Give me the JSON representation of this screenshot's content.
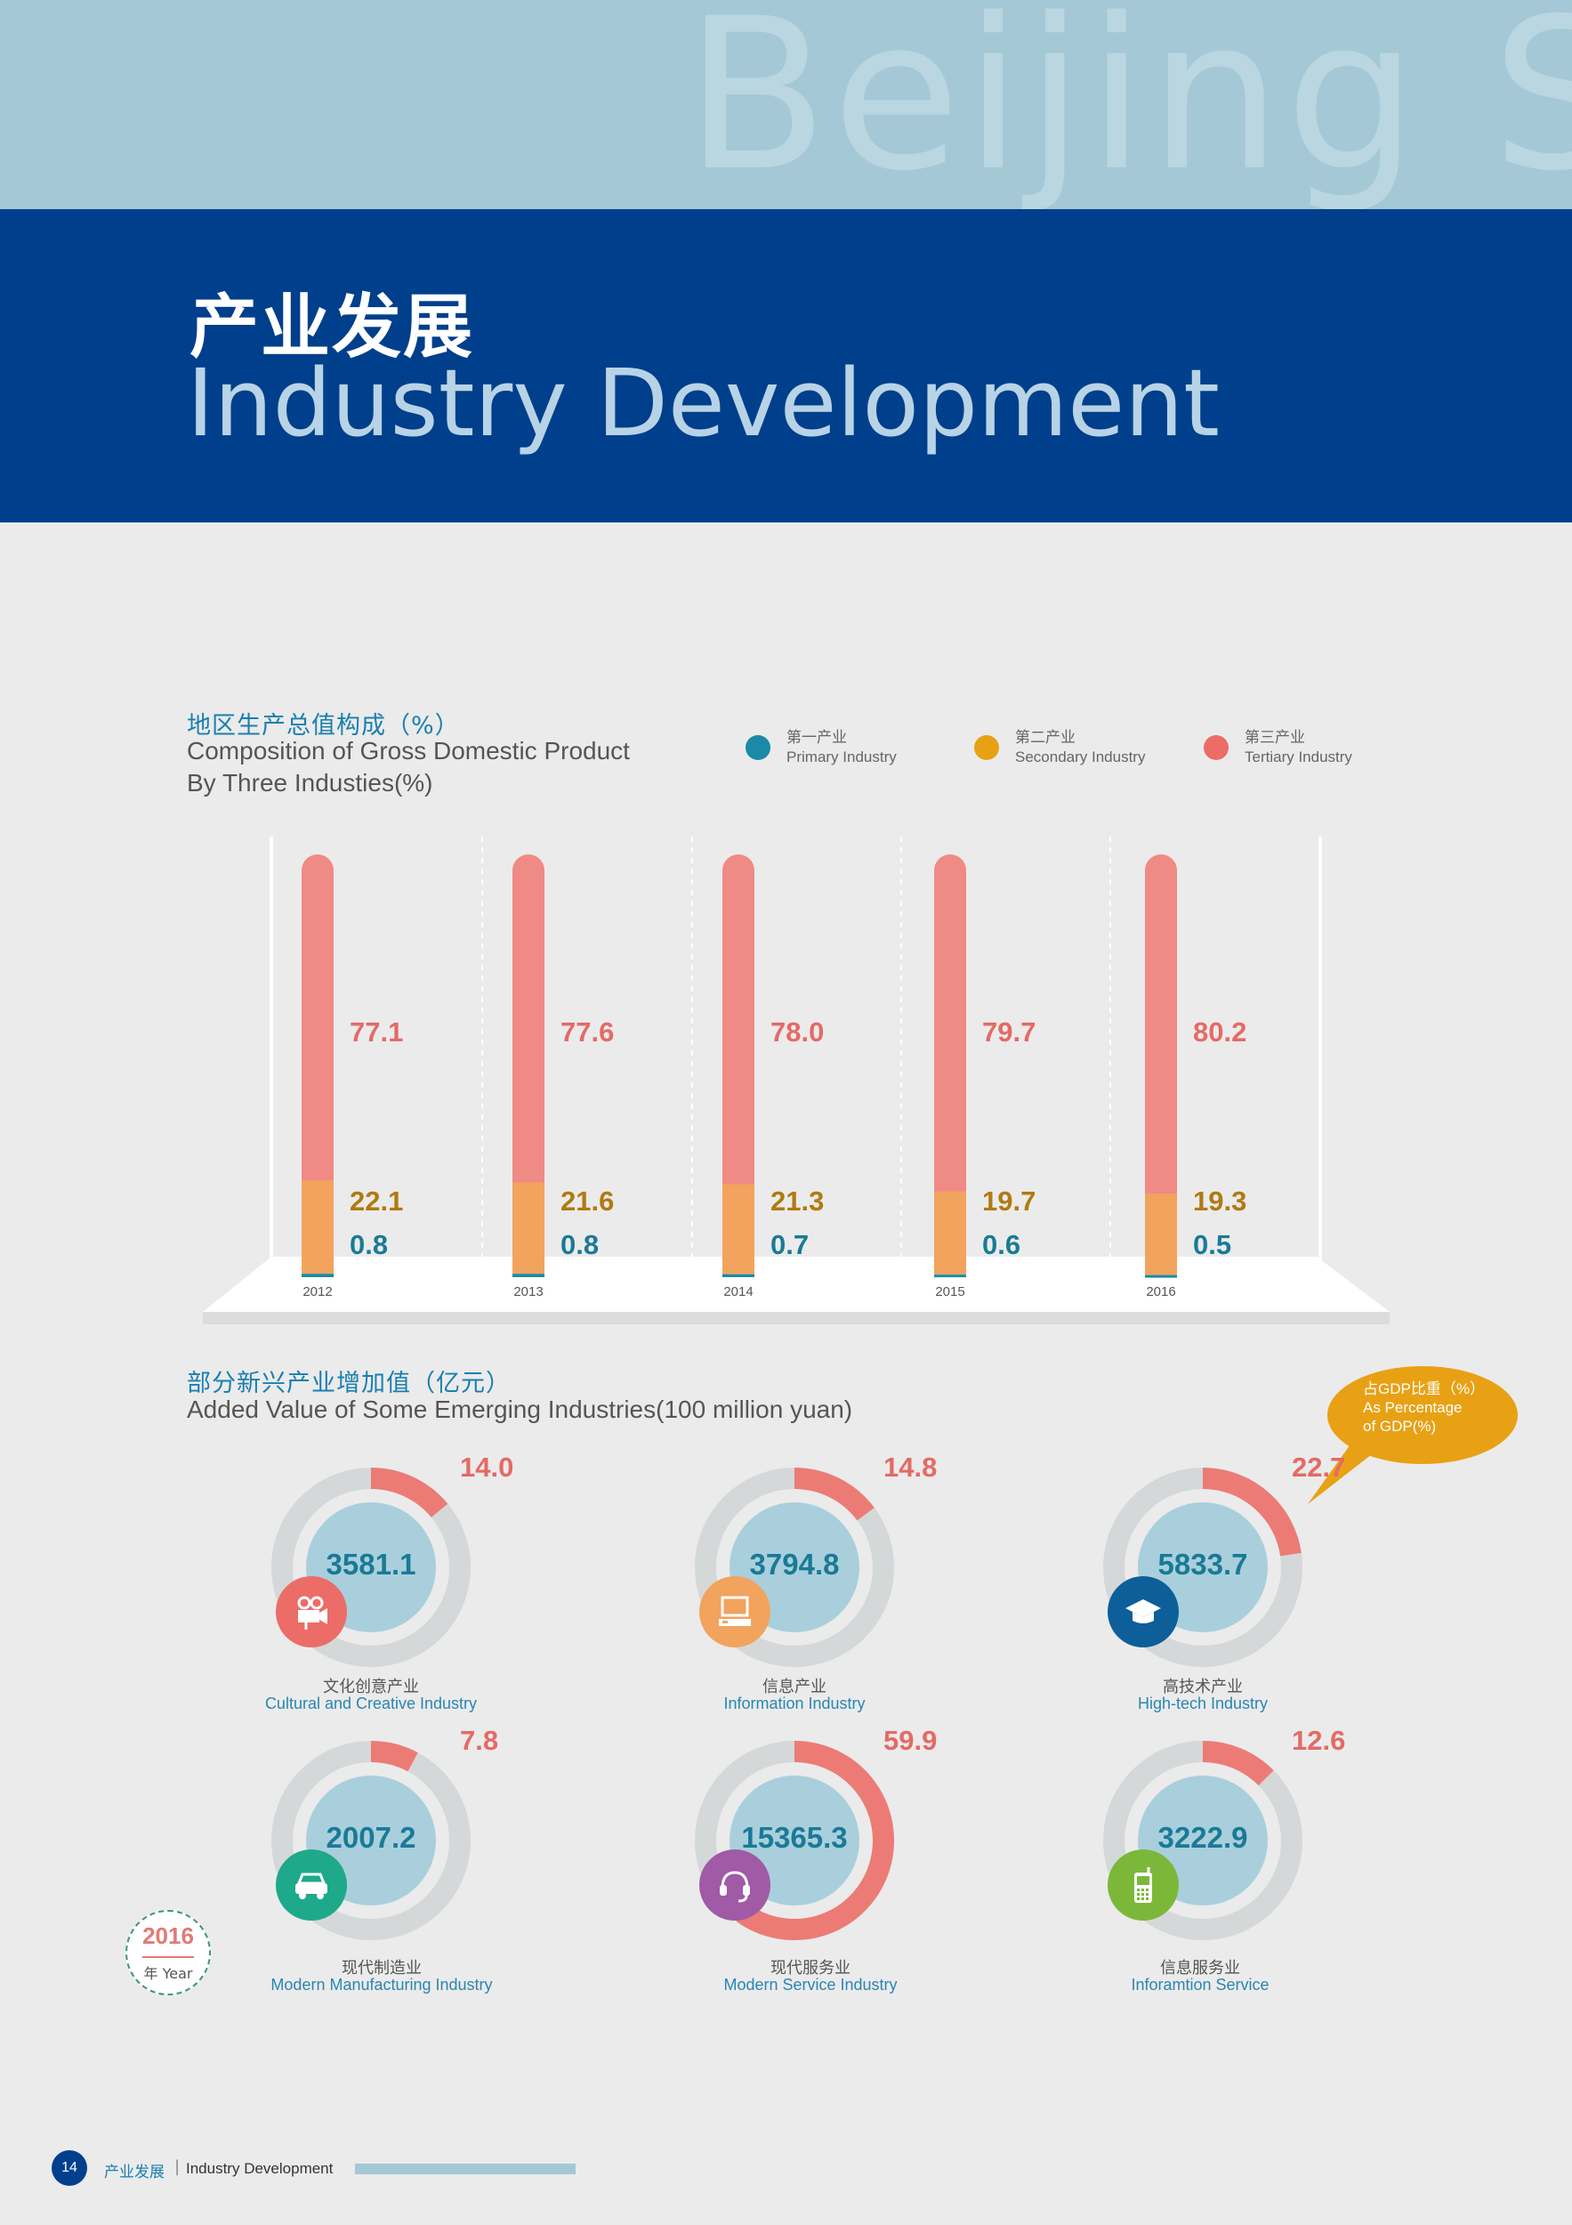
{
  "header": {
    "watermark": "Beijing Sta",
    "title_cn": "产业发展",
    "title_en": "Industry Development"
  },
  "gdp_section": {
    "title_cn": "地区生产总值构成（%）",
    "title_en_line1": "Composition of Gross Domestic Product",
    "title_en_line2": "By Three Industies(%)"
  },
  "legend": [
    {
      "cn": "第一产业",
      "en": "Primary Industry",
      "color": "#1a8aa6"
    },
    {
      "cn": "第二产业",
      "en": "Secondary Industry",
      "color": "#e8a114"
    },
    {
      "cn": "第三产业",
      "en": "Tertiary Industry",
      "color": "#ec6c68"
    }
  ],
  "chart_data": [
    {
      "type": "bar",
      "stacked": true,
      "categories": [
        "2012",
        "2013",
        "2014",
        "2015",
        "2016"
      ],
      "series": [
        {
          "name": "Primary Industry",
          "values": [
            0.8,
            0.8,
            0.7,
            0.6,
            0.5
          ],
          "color": "#1a8aa6"
        },
        {
          "name": "Secondary Industry",
          "values": [
            22.1,
            21.6,
            21.3,
            19.7,
            19.3
          ],
          "color": "#f2a35e"
        },
        {
          "name": "Tertiary Industry",
          "values": [
            77.1,
            77.6,
            78.0,
            79.7,
            80.2
          ],
          "color": "#ef8a85"
        }
      ],
      "ylim": [
        0,
        100
      ]
    },
    {
      "type": "pie",
      "title": "Added Value of Some Emerging Industries(100 million yuan)",
      "items": [
        {
          "cn": "文化创意产业",
          "en": "Cultural and Creative Industry",
          "value": 3581.1,
          "pct": 14.0,
          "pct_label": "14.0",
          "value_label": "3581.1",
          "icon": "movie-camera-icon",
          "icon_color": "#ec6c68"
        },
        {
          "cn": "信息产业",
          "en": "Information Industry",
          "value": 3794.8,
          "pct": 14.8,
          "pct_label": "14.8",
          "value_label": "3794.8",
          "icon": "computer-icon",
          "icon_color": "#f2a35e"
        },
        {
          "cn": "高技术产业",
          "en": "High-tech Industry",
          "value": 5833.7,
          "pct": 22.7,
          "pct_label": "22.7",
          "value_label": "5833.7",
          "icon": "graduation-cap-icon",
          "icon_color": "#0c5f99"
        },
        {
          "cn": "现代制造业",
          "en": "Modern Manufacturing Industry",
          "value": 2007.2,
          "pct": 7.8,
          "pct_label": "7.8",
          "value_label": "2007.2",
          "icon": "car-icon",
          "icon_color": "#1ea98a"
        },
        {
          "cn": "现代服务业",
          "en": "Modern Service Industry",
          "value": 15365.3,
          "pct": 59.9,
          "pct_label": "59.9",
          "value_label": "15365.3",
          "icon": "headset-icon",
          "icon_color": "#a05aa6"
        },
        {
          "cn": "信息服务业",
          "en": "Inforamtion Service",
          "value": 3222.9,
          "pct": 12.6,
          "pct_label": "12.6",
          "value_label": "3222.9",
          "icon": "mobile-phone-icon",
          "icon_color": "#7bb83a"
        }
      ]
    }
  ],
  "emerging_section": {
    "title_cn": "部分新兴产业增加值（亿元）",
    "title_en": "Added Value of Some Emerging Industries(100 million yuan)"
  },
  "bubble": {
    "line1": "占GDP比重（%）",
    "line2": "As Percentage",
    "line3": "of GDP(%)"
  },
  "year_badge": {
    "year": "2016",
    "label": "年 Year"
  },
  "footer": {
    "page": "14",
    "cn": "产业发展",
    "sep": "|",
    "en": "Industry Development"
  },
  "colors": {
    "ring_track": "#d5d8d8",
    "ring_inner": "#a9cfdc",
    "ring_arc": "#ec7b76"
  }
}
